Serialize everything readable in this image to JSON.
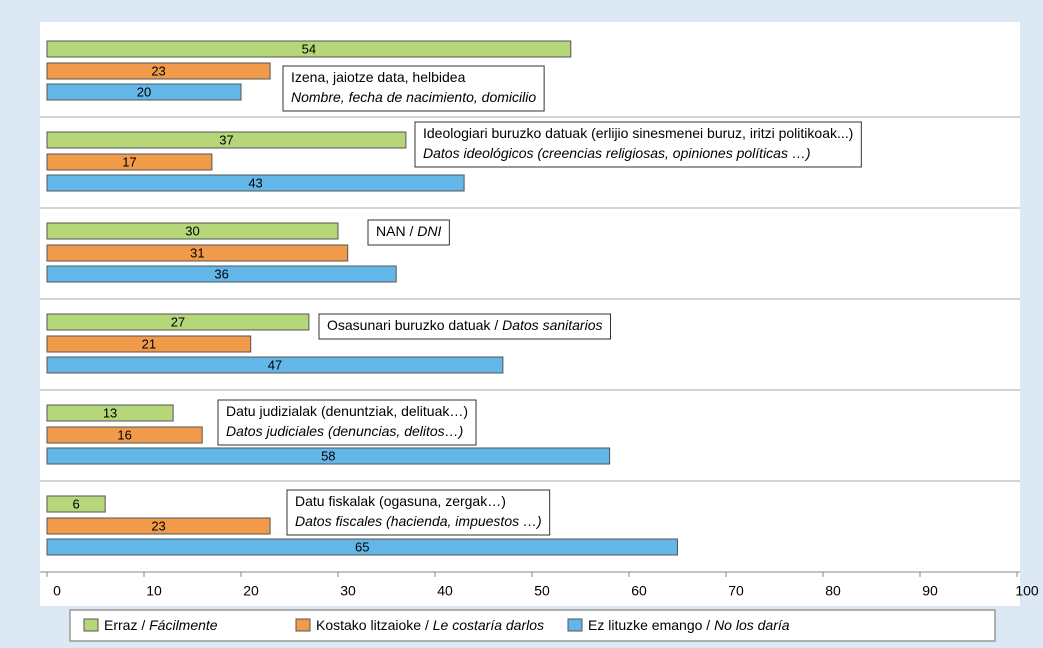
{
  "chart_data": {
    "type": "bar",
    "orientation": "horizontal",
    "categories": [
      [
        "Izena, jaiotze data, helbidea",
        "Nombre, fecha de nacimiento, domicilio"
      ],
      [
        "Ideologiari buruzko datuak (erlijio  sinesmenei buruz, iritzi politikoak...)",
        "Datos ideológicos (creencias religiosas, opiniones políticas …)"
      ],
      [
        "NAN / DNI"
      ],
      [
        "Osasunari buruzko datuak / Datos sanitarios"
      ],
      [
        "Datu judizialak (denuntziak, delituak…)",
        "Datos judiciales (denuncias, delitos…)"
      ],
      [
        "Datu fiskalak (ogasuna, zergak…)",
        "Datos fiscales (hacienda, impuestos …)"
      ]
    ],
    "series": [
      {
        "name": "Erraz / Fácilmente",
        "color": "#b5d77a",
        "values": [
          54,
          37,
          30,
          27,
          13,
          6
        ]
      },
      {
        "name": "Kostako litzaioke / Le costaría darlos",
        "color": "#f09a4a",
        "values": [
          23,
          17,
          31,
          21,
          16,
          23
        ]
      },
      {
        "name": "Ez lituzke emango / No los daría",
        "color": "#62b7e8",
        "values": [
          20,
          43,
          36,
          47,
          58,
          65
        ]
      }
    ],
    "xlim": [
      0,
      100
    ],
    "xticks": [
      0,
      10,
      20,
      30,
      40,
      50,
      60,
      70,
      80,
      90,
      100
    ],
    "legend": "bottom"
  }
}
